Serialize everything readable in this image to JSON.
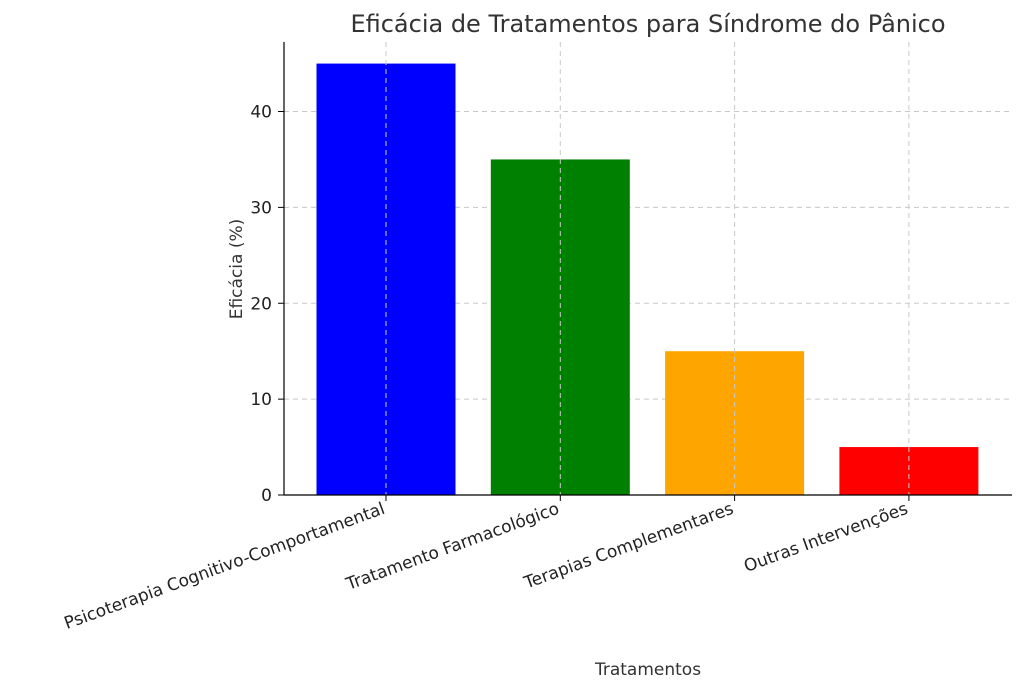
{
  "chart_data": {
    "type": "bar",
    "title": "Eficácia de Tratamentos para Síndrome do Pânico",
    "xlabel": "Tratamentos",
    "ylabel": "Eficácia (%)",
    "categories": [
      "Psicoterapia Cognitivo-Comportamental",
      "Tratamento Farmacológico",
      "Terapias Complementares",
      "Outras Intervenções"
    ],
    "values": [
      45,
      35,
      15,
      5
    ],
    "colors": [
      "#0000ff",
      "#008000",
      "#ffa500",
      "#ff0000"
    ],
    "ylim": [
      0,
      47.25
    ],
    "yticks": [
      0,
      10,
      20,
      30,
      40
    ],
    "grid": true
  }
}
